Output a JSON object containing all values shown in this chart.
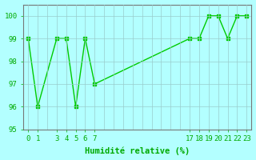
{
  "x": [
    0,
    1,
    3,
    4,
    5,
    6,
    7,
    17,
    18,
    19,
    20,
    21,
    22,
    23
  ],
  "y": [
    99,
    96,
    99,
    99,
    96,
    99,
    97,
    99,
    99,
    100,
    100,
    99,
    100,
    100
  ],
  "xlabel": "Humidité relative (%)",
  "ylim": [
    95,
    100.5
  ],
  "xlim": [
    -0.5,
    23.5
  ],
  "yticks": [
    95,
    96,
    97,
    98,
    99,
    100
  ],
  "shown_xticks": [
    0,
    1,
    3,
    4,
    5,
    6,
    7,
    17,
    18,
    19,
    20,
    21,
    22,
    23
  ],
  "shown_xtick_labels": [
    "0",
    "1",
    "3",
    "4",
    "5",
    "6",
    "7",
    "17",
    "18",
    "19",
    "20",
    "21",
    "22",
    "23"
  ],
  "line_color": "#00cc00",
  "bg_color": "#b3ffff",
  "grid_color": "#99cccc",
  "text_color": "#00aa00",
  "spine_color": "#777777",
  "font_size": 6.5,
  "xlabel_fontsize": 7.5
}
